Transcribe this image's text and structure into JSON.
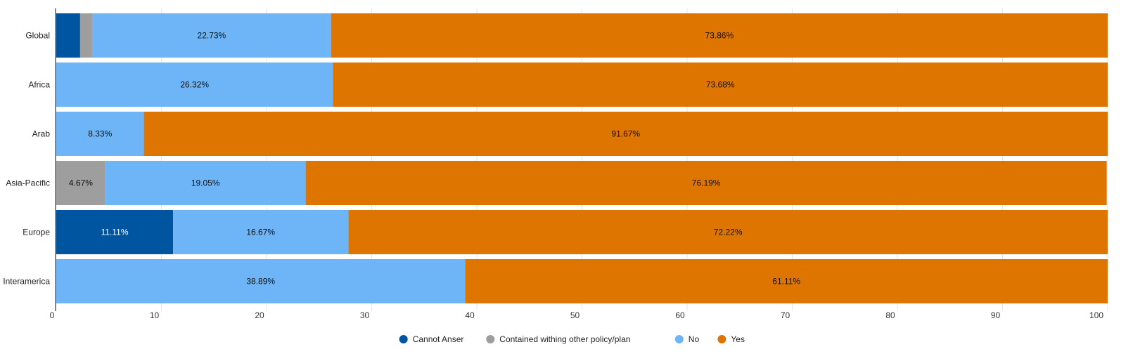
{
  "chart_data": {
    "type": "bar",
    "orientation": "horizontal",
    "stacked": true,
    "categories": [
      "Global",
      "Africa",
      "Arab",
      "Asia-Pacific",
      "Europe",
      "Interamerica"
    ],
    "series": [
      {
        "name": "Cannot Anser",
        "color": "#0055a0",
        "values": [
          2.27,
          0,
          0,
          0,
          11.11,
          0
        ]
      },
      {
        "name": "Contained withing other policy/plan",
        "color": "#9e9e9e",
        "values": [
          1.14,
          0,
          0,
          4.67,
          0,
          0
        ]
      },
      {
        "name": "No",
        "color": "#6eb5f7",
        "values": [
          22.73,
          26.32,
          8.33,
          19.05,
          16.67,
          38.89
        ]
      },
      {
        "name": "Yes",
        "color": "#de7500",
        "values": [
          73.86,
          73.68,
          91.67,
          76.19,
          72.22,
          61.11
        ]
      }
    ],
    "data_labels": [
      [
        "",
        "",
        "22.73%",
        "73.86%"
      ],
      [
        "",
        "",
        "26.32%",
        "73.68%"
      ],
      [
        "",
        "",
        "8.33%",
        "91.67%"
      ],
      [
        "",
        "4.67%",
        "19.05%",
        "76.19%"
      ],
      [
        "11.11%",
        "",
        "16.67%",
        "72.22%"
      ],
      [
        "",
        "",
        "38.89%",
        "61.11%"
      ]
    ],
    "xlim": [
      0,
      100
    ],
    "xticks": [
      0,
      10,
      20,
      30,
      40,
      50,
      60,
      70,
      80,
      90,
      100
    ],
    "grid": true,
    "legend": "bottom-center"
  }
}
